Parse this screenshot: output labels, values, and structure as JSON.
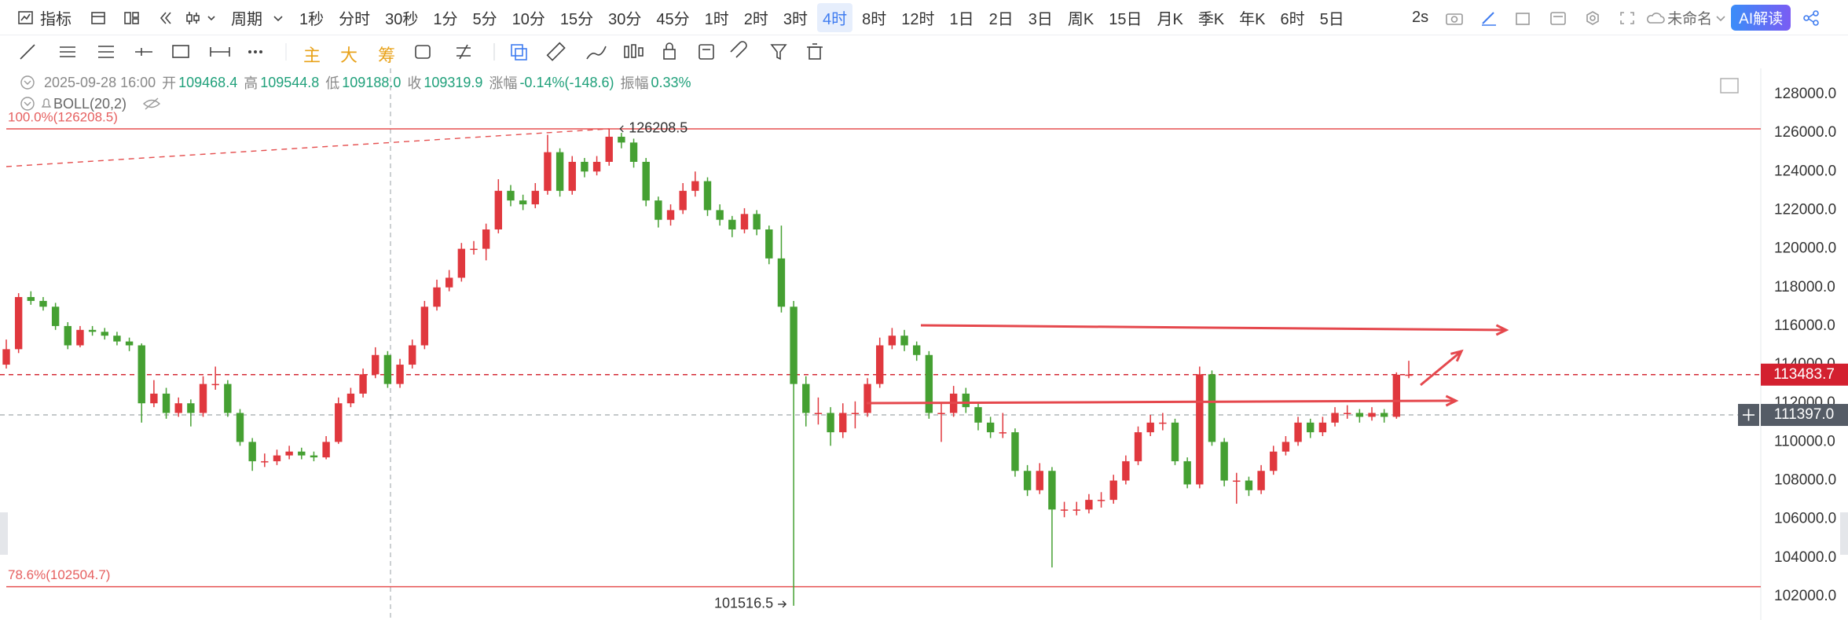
{
  "toolbar": {
    "indicator": "指标",
    "period": "周期",
    "intervals": [
      {
        "label": "1秒"
      },
      {
        "label": "分时"
      },
      {
        "label": "30秒"
      },
      {
        "label": "1分"
      },
      {
        "label": "5分"
      },
      {
        "label": "10分"
      },
      {
        "label": "15分"
      },
      {
        "label": "30分"
      },
      {
        "label": "45分"
      },
      {
        "label": "1时"
      },
      {
        "label": "2时"
      },
      {
        "label": "3时"
      },
      {
        "label": "4时",
        "selected": true
      },
      {
        "label": "8时"
      },
      {
        "label": "12时"
      },
      {
        "label": "1日"
      },
      {
        "label": "2日"
      },
      {
        "label": "3日"
      },
      {
        "label": "周K"
      },
      {
        "label": "15日"
      },
      {
        "label": "月K"
      },
      {
        "label": "季K"
      },
      {
        "label": "年K"
      },
      {
        "label": "6时"
      },
      {
        "label": "5日"
      }
    ],
    "refresh": "2s",
    "name": "未命名",
    "ai": "AI解读"
  },
  "drawing_toolbar": {
    "main": "主",
    "big": "大",
    "chips": "筹"
  },
  "info": {
    "time": "2025-09-28 16:00",
    "fields": [
      {
        "label": "开",
        "value": "109468.4"
      },
      {
        "label": "高",
        "value": "109544.8"
      },
      {
        "label": "低",
        "value": "109188.0"
      },
      {
        "label": "收",
        "value": "109319.9"
      },
      {
        "label": "涨幅",
        "value": "-0.14%(-148.6)"
      },
      {
        "label": "振幅",
        "value": "0.33%"
      }
    ]
  },
  "indicator": "BOLL(20,2)",
  "chart_data": {
    "type": "candlestick",
    "up_color": "#e0383e",
    "down_color": "#45a032",
    "ylim": [
      100780,
      129340
    ],
    "yticks": [
      {
        "value": 102000,
        "label": "102000.0"
      },
      {
        "value": 104000,
        "label": "104000.0"
      },
      {
        "value": 106000,
        "label": "106000.0"
      },
      {
        "value": 108000,
        "label": "108000.0"
      },
      {
        "value": 110000,
        "label": "110000.0"
      },
      {
        "value": 112000,
        "label": "112000.0"
      },
      {
        "value": 114000,
        "label": "114000.0"
      },
      {
        "value": 116000,
        "label": "116000.0"
      },
      {
        "value": 118000,
        "label": "118000.0"
      },
      {
        "value": 120000,
        "label": "120000.0"
      },
      {
        "value": 122000,
        "label": "122000.0"
      },
      {
        "value": 124000,
        "label": "124000.0"
      },
      {
        "value": 126000,
        "label": "126000.0"
      },
      {
        "value": 128000,
        "label": "128000.0"
      }
    ],
    "fib_levels": [
      {
        "value": 126208.5,
        "label": "100.0%(126208.5)"
      },
      {
        "value": 102504.7,
        "label": "78.6%(102504.7)"
      }
    ],
    "crosshair": {
      "value": 111397,
      "label": "111397.0"
    },
    "ohlc": [
      [
        114000,
        115300,
        113800,
        114800
      ],
      [
        114800,
        117700,
        114600,
        117500
      ],
      [
        117500,
        117800,
        117100,
        117300
      ],
      [
        117300,
        117500,
        116800,
        117000
      ],
      [
        117000,
        117200,
        115800,
        116000
      ],
      [
        116000,
        116200,
        114800,
        115000
      ],
      [
        115000,
        116000,
        114900,
        115800
      ],
      [
        115800,
        116000,
        115500,
        115700
      ],
      [
        115700,
        115900,
        115300,
        115500
      ],
      [
        115500,
        115700,
        115000,
        115200
      ],
      [
        115200,
        115400,
        114700,
        115000
      ],
      [
        115000,
        115100,
        111000,
        112000
      ],
      [
        112000,
        113200,
        111800,
        112500
      ],
      [
        112500,
        112800,
        111200,
        111500
      ],
      [
        111500,
        112300,
        111300,
        112000
      ],
      [
        112000,
        112200,
        110800,
        111500
      ],
      [
        111500,
        113400,
        111300,
        113000
      ],
      [
        113000,
        113900,
        112700,
        113000
      ],
      [
        113000,
        113200,
        111300,
        111500
      ],
      [
        111500,
        111700,
        109800,
        110000
      ],
      [
        110000,
        110200,
        108500,
        109000
      ],
      [
        109000,
        109400,
        108700,
        109000
      ],
      [
        109000,
        109600,
        108800,
        109300
      ],
      [
        109300,
        109800,
        109100,
        109500
      ],
      [
        109500,
        109700,
        109100,
        109300
      ],
      [
        109300,
        109500,
        109000,
        109200
      ],
      [
        109200,
        110300,
        109100,
        110000
      ],
      [
        110000,
        112300,
        109900,
        112000
      ],
      [
        112000,
        112800,
        111800,
        112500
      ],
      [
        112500,
        113800,
        112300,
        113500
      ],
      [
        113500,
        114900,
        113300,
        114500
      ],
      [
        114500,
        114700,
        112800,
        113000
      ],
      [
        113000,
        114300,
        112800,
        114000
      ],
      [
        114000,
        115300,
        113800,
        115000
      ],
      [
        115000,
        117300,
        114800,
        117000
      ],
      [
        117000,
        118400,
        116800,
        118000
      ],
      [
        118000,
        118900,
        117800,
        118500
      ],
      [
        118500,
        120300,
        118300,
        120000
      ],
      [
        120000,
        120400,
        119700,
        120000
      ],
      [
        120000,
        121300,
        119400,
        121000
      ],
      [
        121000,
        123600,
        120800,
        123000
      ],
      [
        123000,
        123300,
        122200,
        122500
      ],
      [
        122500,
        122800,
        122000,
        122300
      ],
      [
        122300,
        123400,
        122100,
        123000
      ],
      [
        123000,
        125900,
        122800,
        125000
      ],
      [
        125000,
        125200,
        122700,
        123000
      ],
      [
        123000,
        124800,
        122800,
        124500
      ],
      [
        124500,
        124700,
        123700,
        124000
      ],
      [
        124000,
        124800,
        123800,
        124500
      ],
      [
        124500,
        126208.5,
        124300,
        125800
      ],
      [
        125800,
        126000,
        125200,
        125500
      ],
      [
        125500,
        125700,
        124200,
        124500
      ],
      [
        124500,
        124700,
        122200,
        122500
      ],
      [
        122500,
        122700,
        121100,
        121500
      ],
      [
        121500,
        122300,
        121200,
        122000
      ],
      [
        122000,
        123400,
        121800,
        123000
      ],
      [
        123000,
        124000,
        122700,
        123500
      ],
      [
        123500,
        123700,
        121700,
        122000
      ],
      [
        122000,
        122300,
        121200,
        121500
      ],
      [
        121500,
        121700,
        120600,
        121000
      ],
      [
        121000,
        122100,
        120800,
        121800
      ],
      [
        121800,
        122000,
        120700,
        121000
      ],
      [
        121000,
        121200,
        119200,
        119500
      ],
      [
        119500,
        121200,
        116700,
        117000
      ],
      [
        117000,
        117300,
        101516.5,
        113000
      ],
      [
        113000,
        113400,
        110800,
        111500
      ],
      [
        111500,
        112300,
        110900,
        111500
      ],
      [
        111500,
        111800,
        109800,
        110500
      ],
      [
        110500,
        112000,
        110200,
        111500
      ],
      [
        111500,
        112100,
        110700,
        111500
      ],
      [
        111500,
        113300,
        111300,
        113000
      ],
      [
        113000,
        115400,
        112800,
        115000
      ],
      [
        115000,
        115900,
        114800,
        115500
      ],
      [
        115500,
        115800,
        114700,
        115000
      ],
      [
        115000,
        115200,
        114200,
        114500
      ],
      [
        114500,
        114700,
        111200,
        111500
      ],
      [
        111500,
        112000,
        110000,
        111500
      ],
      [
        111500,
        112900,
        111300,
        112500
      ],
      [
        112500,
        112800,
        111500,
        111800
      ],
      [
        111800,
        112000,
        110600,
        111000
      ],
      [
        111000,
        111300,
        110200,
        110500
      ],
      [
        110500,
        111500,
        110200,
        110500
      ],
      [
        110500,
        110700,
        108200,
        108500
      ],
      [
        108500,
        108800,
        107200,
        107500
      ],
      [
        107500,
        108900,
        107300,
        108500
      ],
      [
        108500,
        108700,
        103500,
        106500
      ],
      [
        106500,
        106900,
        106100,
        106500
      ],
      [
        106500,
        106900,
        106200,
        106500
      ],
      [
        106500,
        107300,
        106300,
        107000
      ],
      [
        107000,
        107400,
        106600,
        107000
      ],
      [
        107000,
        108300,
        106800,
        108000
      ],
      [
        108000,
        109300,
        107800,
        109000
      ],
      [
        109000,
        110800,
        108800,
        110500
      ],
      [
        110500,
        111400,
        110300,
        111000
      ],
      [
        111000,
        111500,
        110600,
        111000
      ],
      [
        111000,
        111200,
        108800,
        109000
      ],
      [
        109000,
        109200,
        107600,
        107800
      ],
      [
        107800,
        113900,
        107600,
        113500
      ],
      [
        113500,
        113700,
        109800,
        110000
      ],
      [
        110000,
        110200,
        107700,
        108000
      ],
      [
        108000,
        108400,
        106800,
        108000
      ],
      [
        108000,
        108200,
        107200,
        107500
      ],
      [
        107500,
        108800,
        107300,
        108500
      ],
      [
        108500,
        109800,
        108300,
        109500
      ],
      [
        109500,
        110300,
        109300,
        110000
      ],
      [
        110000,
        111300,
        109800,
        111000
      ],
      [
        111000,
        111200,
        110200,
        110500
      ],
      [
        110500,
        111300,
        110300,
        111000
      ],
      [
        111000,
        111800,
        110800,
        111500
      ],
      [
        111500,
        111900,
        111200,
        111500
      ],
      [
        111500,
        111700,
        111000,
        111300
      ],
      [
        111300,
        111800,
        111100,
        111500
      ],
      [
        111500,
        111700,
        111000,
        111300
      ],
      [
        111300,
        113600,
        111200,
        113480
      ],
      [
        113480,
        114200,
        113300,
        113483.7
      ]
    ]
  }
}
